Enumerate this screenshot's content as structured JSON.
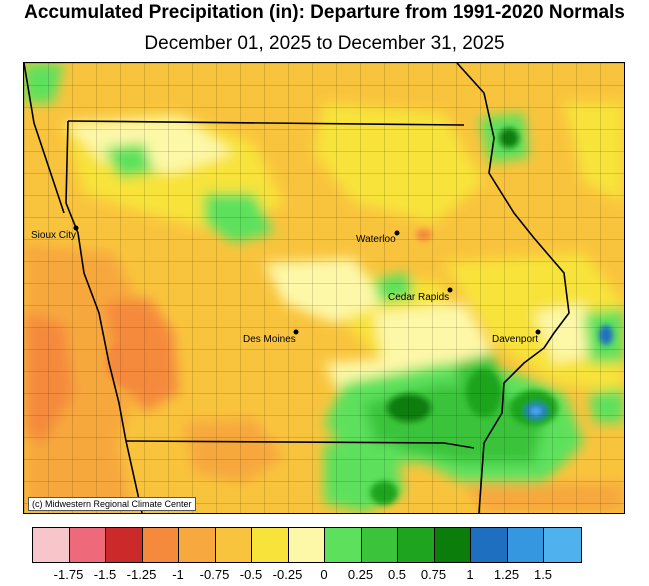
{
  "title": "Accumulated Precipitation (in): Departure from 1991-2020 Normals",
  "subtitle": "December 01, 2025 to December 31, 2025",
  "credit": "(c) Midwestern Regional Climate Center",
  "cities": [
    {
      "name": "Sioux City",
      "id": "sioux-city"
    },
    {
      "name": "Waterloo",
      "id": "waterloo"
    },
    {
      "name": "Cedar Rapids",
      "id": "cedar-rapids"
    },
    {
      "name": "Des Moines",
      "id": "des-moines"
    },
    {
      "name": "Davenport",
      "id": "davenport"
    }
  ],
  "legend": {
    "colors": [
      "#f7c6cb",
      "#ee6a7a",
      "#cc2a2a",
      "#f58a3c",
      "#f7a83e",
      "#f9c43d",
      "#f8e33a",
      "#fdf8a8",
      "#5de15d",
      "#3bc43b",
      "#1ea41e",
      "#0b7d0b",
      "#1e6fbf",
      "#3597e0",
      "#4fb2ef"
    ],
    "ticks": [
      "-1.75",
      "-1.5",
      "-1.25",
      "-1",
      "-0.75",
      "-0.5",
      "-0.25",
      "0",
      "0.25",
      "0.5",
      "0.75",
      "1",
      "1.25",
      "1.5"
    ]
  }
}
